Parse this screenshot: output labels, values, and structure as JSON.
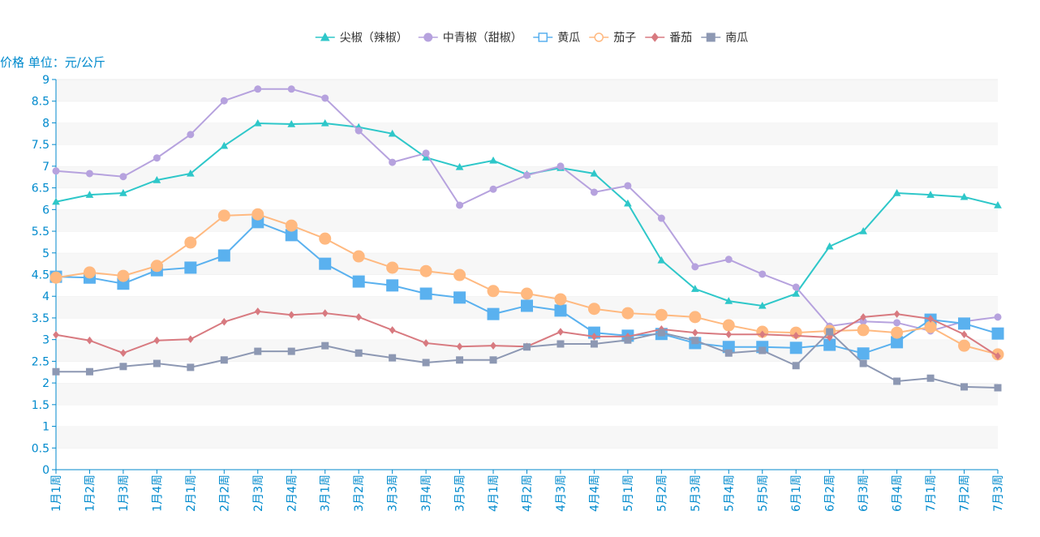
{
  "chart_data": {
    "type": "line",
    "title": "",
    "ylabel": "价格 单位：元/公斤",
    "xlabel": "",
    "ylim": [
      0,
      9
    ],
    "yticks": [
      0,
      0.5,
      1,
      1.5,
      2,
      2.5,
      3,
      3.5,
      4,
      4.5,
      5,
      5.5,
      6,
      6.5,
      7,
      7.5,
      8,
      8.5,
      9
    ],
    "grid": "alternating horizontal bands",
    "legend_position": "top-center",
    "axis_color": "#008acd",
    "categories": [
      "1月1周",
      "1月2周",
      "1月3周",
      "1月4周",
      "2月1周",
      "2月2周",
      "2月3周",
      "2月4周",
      "3月1周",
      "3月2周",
      "3月3周",
      "3月4周",
      "3月5周",
      "4月1周",
      "4月2周",
      "4月3周",
      "4月4周",
      "5月1周",
      "5月2周",
      "5月3周",
      "5月4周",
      "5月5周",
      "6月1周",
      "6月2周",
      "6月3周",
      "6月4周",
      "7月1周",
      "7月2周",
      "7月3周"
    ],
    "series": [
      {
        "name": "尖椒（辣椒）",
        "color": "#2ec7c9",
        "marker": "triangle",
        "values": [
          6.18,
          6.34,
          6.38,
          6.68,
          6.83,
          7.47,
          7.99,
          7.97,
          7.99,
          7.9,
          7.75,
          7.2,
          6.98,
          7.13,
          6.81,
          6.96,
          6.83,
          6.14,
          4.83,
          4.17,
          3.89,
          3.78,
          4.06,
          5.15,
          5.5,
          6.38,
          6.34,
          6.29,
          6.1
        ]
      },
      {
        "name": "中青椒（甜椒）",
        "color": "#b6a2de",
        "marker": "circle",
        "values": [
          6.89,
          6.83,
          6.76,
          7.19,
          7.73,
          8.51,
          8.78,
          8.78,
          8.57,
          7.82,
          7.09,
          7.3,
          6.1,
          6.47,
          6.79,
          7.0,
          6.4,
          6.55,
          5.8,
          4.68,
          4.85,
          4.51,
          4.21,
          3.31,
          3.42,
          3.39,
          3.2,
          3.42,
          3.52
        ]
      },
      {
        "name": "黄瓜",
        "color": "#5ab1ef",
        "marker": "square",
        "values": [
          4.45,
          4.43,
          4.29,
          4.6,
          4.66,
          4.94,
          5.71,
          5.41,
          4.75,
          4.34,
          4.25,
          4.06,
          3.97,
          3.59,
          3.78,
          3.67,
          3.16,
          3.09,
          3.13,
          2.92,
          2.83,
          2.83,
          2.81,
          2.88,
          2.68,
          2.94,
          3.46,
          3.37,
          3.14
        ]
      },
      {
        "name": "茄子",
        "color": "#ffb980",
        "marker": "circle",
        "values": [
          4.43,
          4.55,
          4.47,
          4.7,
          5.24,
          5.86,
          5.89,
          5.63,
          5.33,
          4.92,
          4.66,
          4.58,
          4.49,
          4.12,
          4.06,
          3.93,
          3.71,
          3.61,
          3.57,
          3.52,
          3.33,
          3.18,
          3.16,
          3.2,
          3.22,
          3.16,
          3.29,
          2.86,
          2.66
        ]
      },
      {
        "name": "番茄",
        "color": "#d87a80",
        "marker": "diamond",
        "values": [
          3.11,
          2.98,
          2.69,
          2.98,
          3.01,
          3.41,
          3.65,
          3.57,
          3.61,
          3.52,
          3.22,
          2.92,
          2.84,
          2.86,
          2.84,
          3.18,
          3.07,
          3.07,
          3.24,
          3.16,
          3.12,
          3.12,
          3.09,
          3.05,
          3.52,
          3.59,
          3.48,
          3.12,
          2.62
        ]
      },
      {
        "name": "南瓜",
        "color": "#8d98b3",
        "marker": "square",
        "values": [
          2.26,
          2.26,
          2.38,
          2.45,
          2.36,
          2.53,
          2.73,
          2.73,
          2.86,
          2.69,
          2.58,
          2.47,
          2.53,
          2.53,
          2.83,
          2.9,
          2.9,
          2.99,
          3.16,
          2.98,
          2.69,
          2.75,
          2.4,
          3.18,
          2.45,
          2.04,
          2.11,
          1.91,
          1.89
        ]
      }
    ]
  }
}
